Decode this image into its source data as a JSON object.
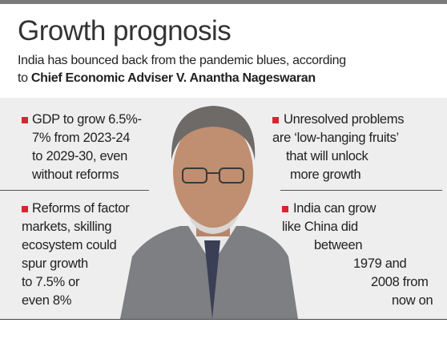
{
  "title": "Growth prognosis",
  "subtitle_lines": [
    "India has bounced back from the pandemic blues, according",
    "to"
  ],
  "subtitle_emphasis": "Chief Economic Adviser V. Anantha Nageswaran",
  "points": [
    {
      "lines": [
        "GDP to grow 6.5%-",
        "7% from 2023-24",
        "to 2029-30, even",
        "without reforms"
      ]
    },
    {
      "lines": [
        "Reforms of factor",
        "markets, skilling",
        "ecosystem could",
        "spur growth",
        "to 7.5% or",
        "even 8%"
      ]
    },
    {
      "lines": [
        "Unresolved problems",
        "are ‘low-hanging fruits’",
        "that will unlock",
        "more growth"
      ]
    },
    {
      "lines": [
        "India can grow",
        "like China did",
        "between",
        "1979 and",
        "2008 from",
        "now on"
      ]
    }
  ]
}
